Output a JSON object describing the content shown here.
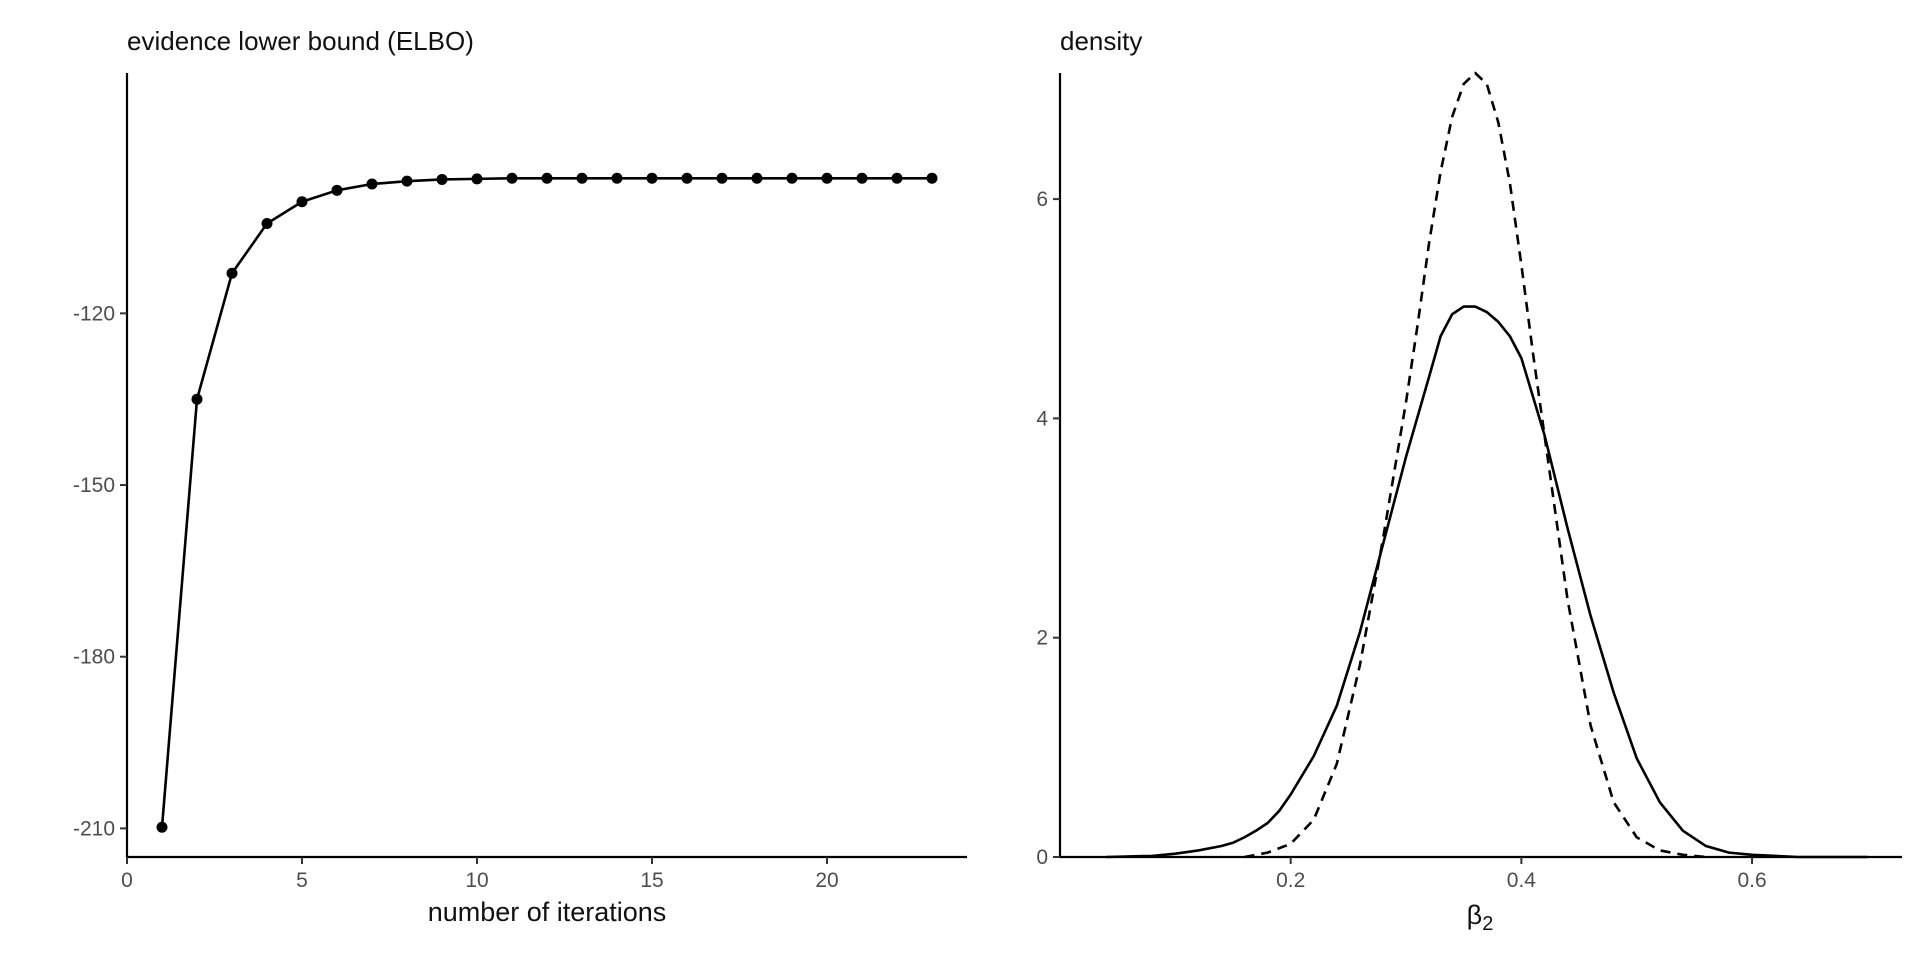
{
  "chart_data": [
    {
      "type": "line",
      "title": "evidence lower bound (ELBO)",
      "xlabel": "number of iterations",
      "ylabel": "",
      "xlim": [
        0,
        24
      ],
      "ylim": [
        -215,
        -78
      ],
      "x_ticks": [
        0,
        5,
        10,
        15,
        20
      ],
      "y_ticks": [
        -210,
        -180,
        -150,
        -120
      ],
      "x_tick_labels": [
        "0",
        "5",
        "10",
        "15",
        "20"
      ],
      "y_tick_labels": [
        "-210",
        "-180",
        "-150",
        "-120"
      ],
      "grid": false,
      "markers": true,
      "color": "#000000",
      "series": [
        {
          "x": [
            1,
            2,
            3,
            4,
            5,
            6,
            7,
            8,
            9,
            10,
            11,
            12,
            13,
            14,
            15,
            16,
            17,
            18,
            19,
            20,
            21,
            22,
            23
          ],
          "values": [
            -209.8,
            -135.0,
            -113.0,
            -104.3,
            -100.5,
            -98.5,
            -97.4,
            -96.9,
            -96.6,
            -96.5,
            -96.4,
            -96.4,
            -96.4,
            -96.4,
            -96.4,
            -96.4,
            -96.4,
            -96.4,
            -96.4,
            -96.4,
            -96.4,
            -96.4,
            -96.4
          ]
        }
      ]
    },
    {
      "type": "line",
      "title": "density",
      "xlabel": "β",
      "xlabel_subscript": "2",
      "ylabel": "",
      "xlim": [
        0.0,
        0.73
      ],
      "ylim": [
        0,
        7.15
      ],
      "x_ticks": [
        0.2,
        0.4,
        0.6
      ],
      "y_ticks": [
        0,
        2,
        4,
        6
      ],
      "x_tick_labels": [
        "0.2",
        "0.4",
        "0.6"
      ],
      "y_tick_labels": [
        "0",
        "2",
        "4",
        "6"
      ],
      "grid": false,
      "color": "#000000",
      "series": [
        {
          "style": "solid",
          "x": [
            0.04,
            0.08,
            0.1,
            0.12,
            0.14,
            0.15,
            0.16,
            0.17,
            0.18,
            0.19,
            0.2,
            0.22,
            0.24,
            0.26,
            0.28,
            0.3,
            0.32,
            0.33,
            0.34,
            0.35,
            0.36,
            0.37,
            0.38,
            0.39,
            0.4,
            0.42,
            0.44,
            0.46,
            0.48,
            0.5,
            0.52,
            0.54,
            0.56,
            0.58,
            0.6,
            0.64,
            0.7
          ],
          "values": [
            0.0,
            0.01,
            0.03,
            0.06,
            0.1,
            0.13,
            0.18,
            0.24,
            0.31,
            0.42,
            0.57,
            0.92,
            1.38,
            2.05,
            2.85,
            3.65,
            4.38,
            4.75,
            4.95,
            5.02,
            5.02,
            4.97,
            4.88,
            4.75,
            4.55,
            3.85,
            3.0,
            2.2,
            1.5,
            0.9,
            0.5,
            0.24,
            0.1,
            0.04,
            0.02,
            0.0,
            0.0
          ]
        },
        {
          "style": "dashed",
          "x": [
            0.16,
            0.18,
            0.2,
            0.22,
            0.24,
            0.26,
            0.28,
            0.3,
            0.31,
            0.32,
            0.33,
            0.34,
            0.35,
            0.36,
            0.37,
            0.38,
            0.39,
            0.4,
            0.41,
            0.42,
            0.44,
            0.46,
            0.48,
            0.5,
            0.52,
            0.54,
            0.56
          ],
          "values": [
            0.0,
            0.04,
            0.12,
            0.34,
            0.85,
            1.75,
            2.9,
            4.15,
            4.85,
            5.6,
            6.25,
            6.75,
            7.05,
            7.15,
            7.05,
            6.7,
            6.15,
            5.4,
            4.6,
            3.85,
            2.35,
            1.2,
            0.5,
            0.18,
            0.06,
            0.02,
            0.0
          ]
        }
      ]
    }
  ]
}
